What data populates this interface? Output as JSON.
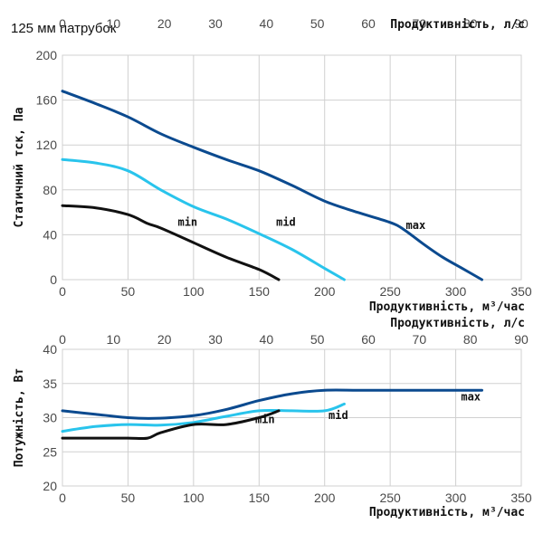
{
  "chart_data": [
    {
      "type": "line",
      "title": "125 мм патрубок",
      "xlabel": "Продуктивність, м³/час",
      "x2label": "Продуктивність, л/с",
      "ylabel": "Статичний тск, Па",
      "xlim": [
        0,
        350
      ],
      "x2lim": [
        0,
        90
      ],
      "ylim": [
        0,
        200
      ],
      "xticks": [
        "0",
        "50",
        "100",
        "150",
        "200",
        "250",
        "300",
        "350"
      ],
      "x2ticks": [
        "0",
        "10",
        "20",
        "30",
        "40",
        "50",
        "60",
        "70",
        "80",
        "90"
      ],
      "yticks": [
        "0",
        "40",
        "80",
        "120",
        "160",
        "200"
      ],
      "grid": true,
      "series": [
        {
          "name": "max",
          "color": "#0b4a8f",
          "x": [
            0,
            25,
            50,
            75,
            100,
            125,
            150,
            175,
            200,
            225,
            250,
            260,
            275,
            290,
            305,
            320
          ],
          "y": [
            168,
            157,
            145,
            130,
            118,
            107,
            97,
            84,
            70,
            60,
            51,
            45,
            32,
            20,
            10,
            0
          ]
        },
        {
          "name": "mid",
          "color": "#29c4ec",
          "x": [
            0,
            25,
            50,
            75,
            100,
            125,
            150,
            175,
            200,
            215
          ],
          "y": [
            107,
            104,
            97,
            80,
            65,
            54,
            41,
            27,
            10,
            0
          ]
        },
        {
          "name": "min",
          "color": "#111111",
          "x": [
            0,
            25,
            50,
            65,
            75,
            100,
            125,
            150,
            165
          ],
          "y": [
            66,
            64,
            58,
            50,
            46,
            33,
            20,
            9,
            0
          ]
        }
      ],
      "series_label_positions": [
        {
          "name": "max",
          "x": 262,
          "y": 45
        },
        {
          "name": "mid",
          "x": 163,
          "y": 48
        },
        {
          "name": "min",
          "x": 88,
          "y": 48
        }
      ]
    },
    {
      "type": "line",
      "xlabel": "Продуктивність, м³/час",
      "x2label": "Продуктивність, л/с",
      "ylabel": "Потужність, Вт",
      "xlim": [
        0,
        350
      ],
      "x2lim": [
        0,
        90
      ],
      "ylim": [
        20,
        40
      ],
      "xticks": [
        "0",
        "50",
        "100",
        "150",
        "200",
        "250",
        "300",
        "350"
      ],
      "x2ticks": [
        "0",
        "10",
        "20",
        "30",
        "40",
        "50",
        "60",
        "70",
        "80",
        "90"
      ],
      "yticks": [
        "20",
        "25",
        "30",
        "35",
        "40"
      ],
      "grid": true,
      "series": [
        {
          "name": "max",
          "color": "#0b4a8f",
          "x": [
            0,
            25,
            50,
            70,
            100,
            125,
            150,
            175,
            200,
            225,
            250,
            275,
            300,
            320
          ],
          "y": [
            31,
            30.5,
            30,
            29.9,
            30.3,
            31.2,
            32.5,
            33.5,
            34,
            34,
            34,
            34,
            34,
            34
          ]
        },
        {
          "name": "mid",
          "color": "#29c4ec",
          "x": [
            0,
            25,
            50,
            75,
            100,
            125,
            150,
            175,
            200,
            215
          ],
          "y": [
            28,
            28.7,
            29,
            28.9,
            29.3,
            30.2,
            31,
            31,
            31,
            32
          ]
        },
        {
          "name": "min",
          "color": "#111111",
          "x": [
            0,
            25,
            50,
            65,
            75,
            100,
            125,
            150,
            165
          ],
          "y": [
            27,
            27,
            27,
            27,
            27.8,
            29,
            29,
            30,
            31
          ]
        }
      ],
      "series_label_positions": [
        {
          "name": "max",
          "x": 304,
          "y": 32.5
        },
        {
          "name": "mid",
          "x": 203,
          "y": 29.8
        },
        {
          "name": "min",
          "x": 147,
          "y": 29.2
        }
      ]
    }
  ]
}
